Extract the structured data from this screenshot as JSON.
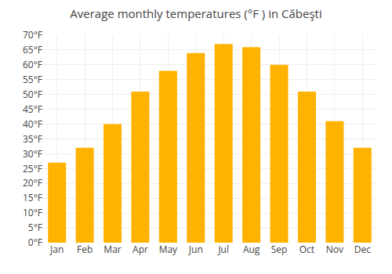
{
  "chart_data": {
    "type": "bar",
    "title": "Average monthly temperatures (°F ) in Căbeşti",
    "categories": [
      "Jan",
      "Feb",
      "Mar",
      "Apr",
      "May",
      "Jun",
      "Jul",
      "Aug",
      "Sep",
      "Oct",
      "Nov",
      "Dec"
    ],
    "values": [
      27,
      32,
      40,
      51,
      58,
      64,
      67,
      66,
      60,
      51,
      41,
      32
    ],
    "color": "#FFB300",
    "ylim": [
      0,
      70
    ],
    "yticks": [
      {
        "value": 0,
        "label": "0°F"
      },
      {
        "value": 5,
        "label": "5°F"
      },
      {
        "value": 10,
        "label": "10°F"
      },
      {
        "value": 15,
        "label": "15°F"
      },
      {
        "value": 20,
        "label": "20°F"
      },
      {
        "value": 25,
        "label": "25°F"
      },
      {
        "value": 30,
        "label": "30°F"
      },
      {
        "value": 35,
        "label": "35°F"
      },
      {
        "value": 40,
        "label": "40°F"
      },
      {
        "value": 45,
        "label": "45°F"
      },
      {
        "value": 50,
        "label": "50°F"
      },
      {
        "value": 55,
        "label": "55°F"
      },
      {
        "value": 60,
        "label": "60°F"
      },
      {
        "value": 65,
        "label": "65°F"
      },
      {
        "value": 70,
        "label": "70°F"
      }
    ],
    "grid": true
  }
}
